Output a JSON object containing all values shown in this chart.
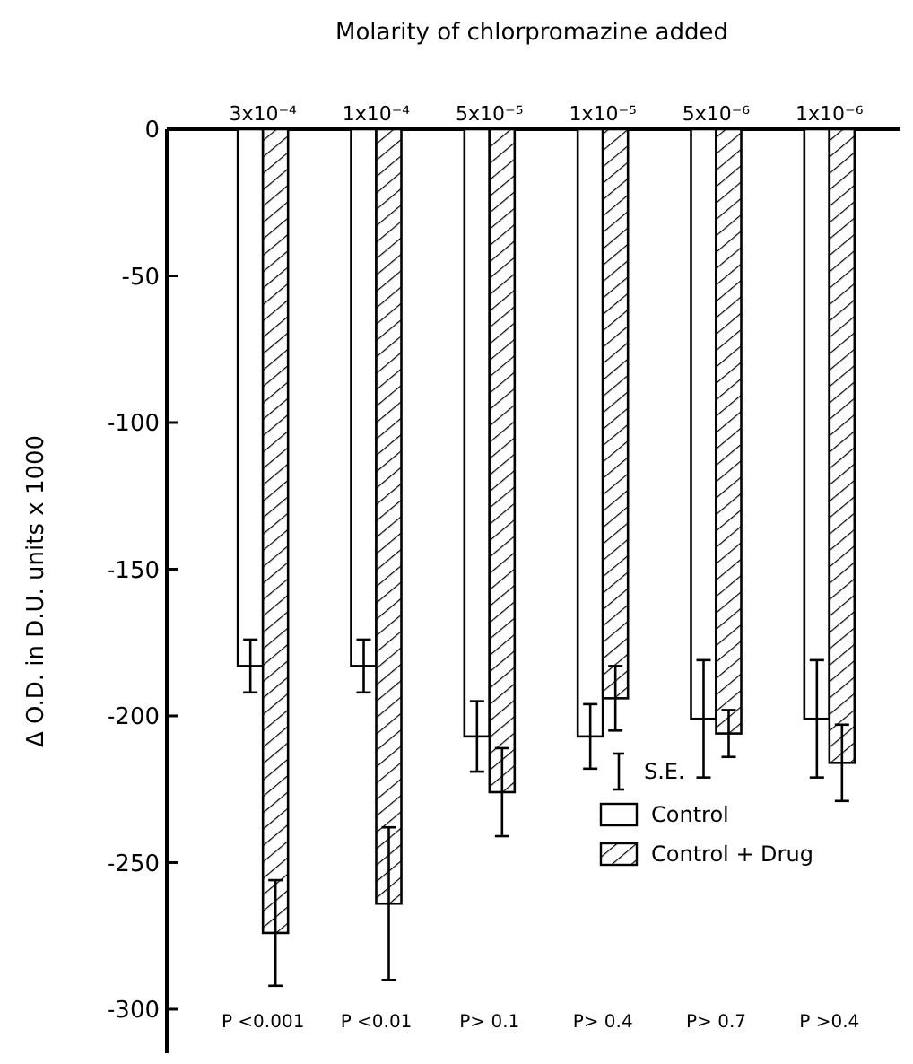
{
  "chart_data": {
    "type": "bar",
    "title": "Molarity of chlorpromazine added",
    "ylabel": "Δ O.D. in D.U. units x 1000",
    "categories": [
      "3x10⁻⁴",
      "1x10⁻⁴",
      "5x10⁻⁵",
      "1x10⁻⁵",
      "5x10⁻⁶",
      "1x10⁻⁶"
    ],
    "series": [
      {
        "name": "Control",
        "color": "#ffffff",
        "values": [
          -183,
          -183,
          -207,
          -207,
          -201,
          -201
        ],
        "errors": [
          9,
          9,
          12,
          11,
          20,
          20
        ]
      },
      {
        "name": "Control + Drug",
        "color": "#000000",
        "values": [
          -274,
          -264,
          -226,
          -194,
          -206,
          -216
        ],
        "errors": [
          18,
          26,
          15,
          11,
          8,
          13
        ]
      }
    ],
    "ylim": [
      -315,
      0
    ],
    "yticks": [
      0,
      -50,
      -100,
      -150,
      -200,
      -250,
      -300
    ],
    "legend": "bottom right",
    "legend_title": "S.E.",
    "annotations": [
      "P <0.001",
      "P <0.01",
      "P> 0.1",
      "P> 0.4",
      "P> 0.7",
      "P >0.4"
    ]
  }
}
